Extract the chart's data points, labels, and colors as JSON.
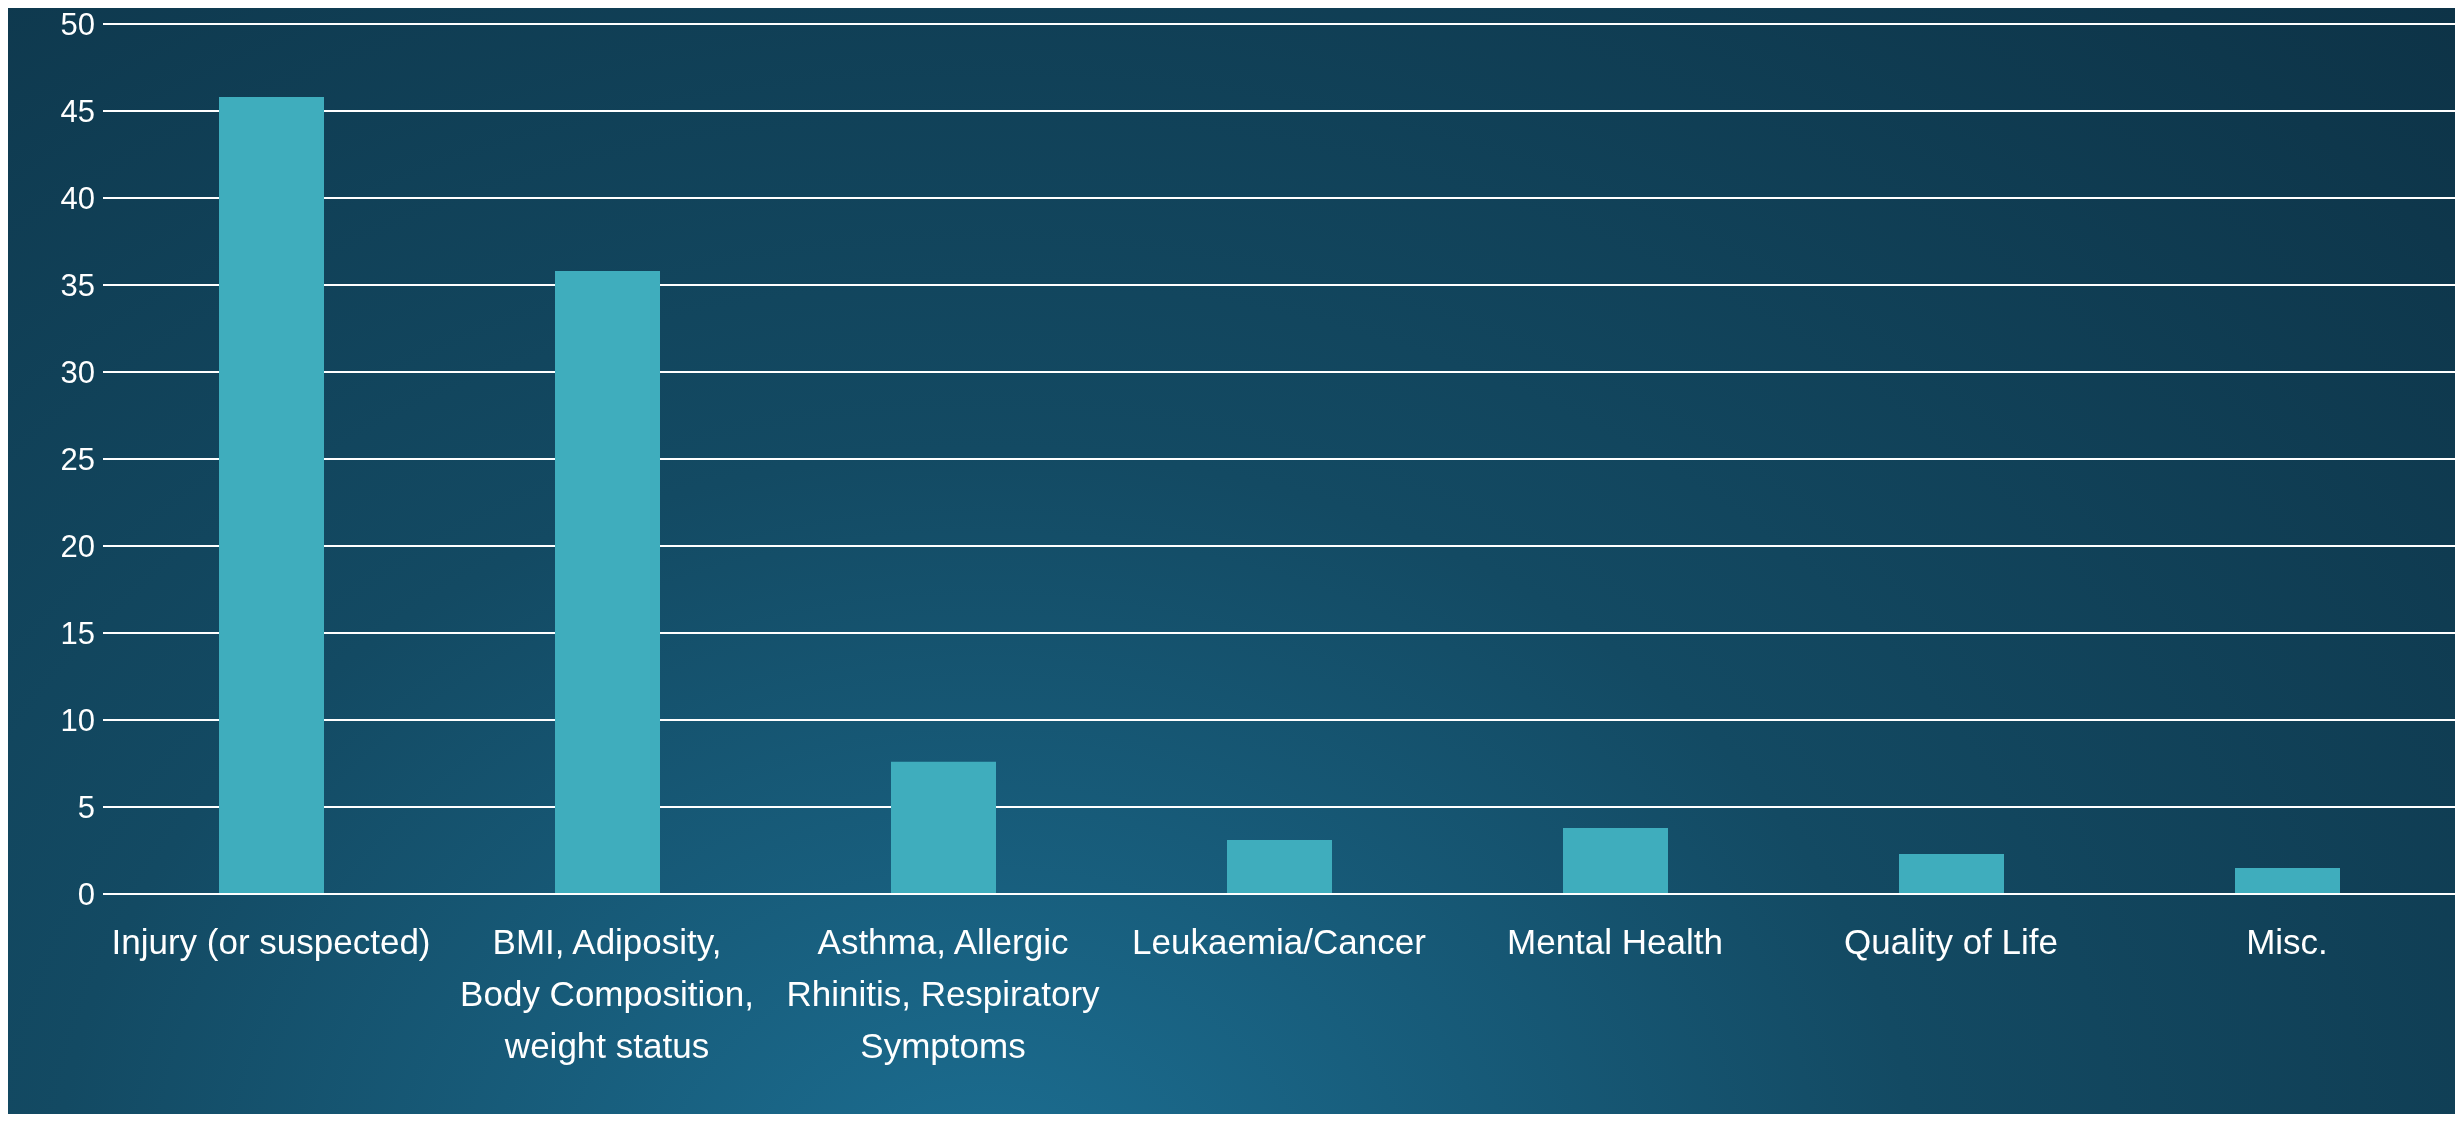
{
  "chart_data": {
    "type": "bar",
    "categories": [
      "Injury (or suspected)",
      "BMI, Adiposity, Body Composition, weight status",
      "Asthma, Allergic Rhinitis, Respiratory Symptoms",
      "Leukaemia/Cancer",
      "Mental Health",
      "Quality of Life",
      "Misc."
    ],
    "values": [
      45.8,
      35.8,
      7.6,
      3.1,
      3.8,
      2.3,
      1.5
    ],
    "color": "#3fadbd",
    "ylim": [
      0,
      50
    ],
    "yticks": [
      0,
      5,
      10,
      15,
      20,
      25,
      30,
      35,
      40,
      45,
      50
    ],
    "grid": "y",
    "legend": false
  }
}
